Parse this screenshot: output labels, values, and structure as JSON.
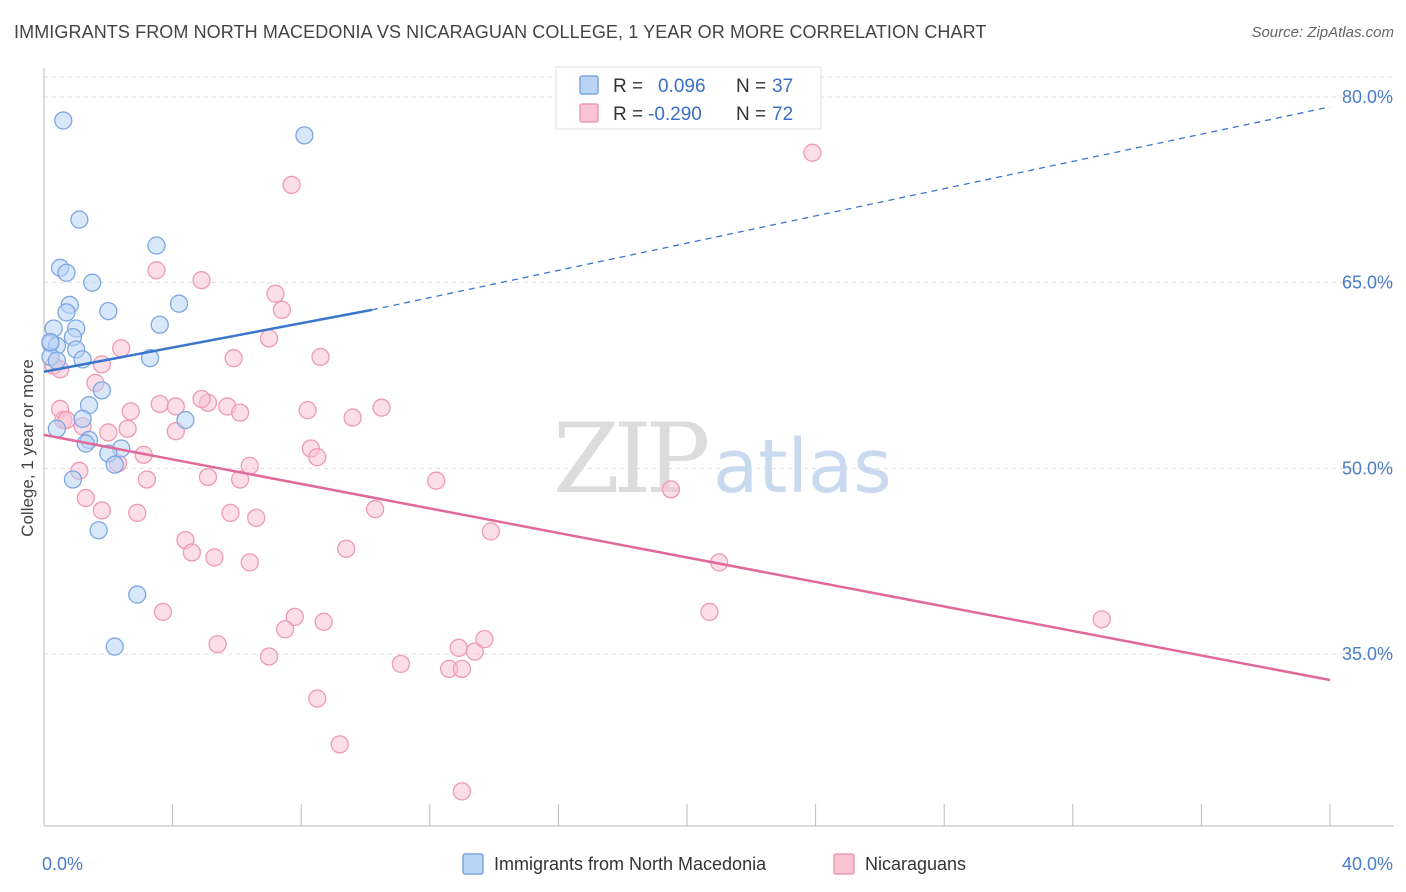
{
  "title": "IMMIGRANTS FROM NORTH MACEDONIA VS NICARAGUAN COLLEGE, 1 YEAR OR MORE CORRELATION CHART",
  "source": "Source: ZipAtlas.com",
  "watermark": {
    "zip": "ZIP",
    "atlas": "atlas"
  },
  "colors": {
    "series1_fill": "#b9d3f5",
    "series1_stroke": "#7ea7e0",
    "series1_line": "#3a76cc",
    "series2_fill": "#f8c3d3",
    "series2_stroke": "#ee9ab3",
    "series2_line": "#e0699a",
    "grid": "#dddddd",
    "tick_text": "#4a7cc7"
  },
  "legend_top": {
    "rows": [
      {
        "r_label": "R =",
        "r_value": "0.096",
        "n_label": "N =",
        "n_value": "37"
      },
      {
        "r_label": "R =",
        "r_value": "-0.290",
        "n_label": "N =",
        "n_value": "72"
      }
    ]
  },
  "chart_data": {
    "type": "scatter",
    "xlabel": "",
    "ylabel": "College, 1 year or more",
    "xlim": [
      0,
      40
    ],
    "ylim": [
      23,
      83
    ],
    "x_tick_labels": [
      {
        "value": 0,
        "label": "0.0%"
      },
      {
        "value": 40,
        "label": "40.0%"
      }
    ],
    "y_tick_labels": [
      {
        "value": 35,
        "label": "35.0%"
      },
      {
        "value": 50,
        "label": "50.0%"
      },
      {
        "value": 65,
        "label": "65.0%"
      },
      {
        "value": 80,
        "label": "80.0%"
      }
    ],
    "grid": true,
    "legend_placement": "bottom",
    "series": [
      {
        "name": "Immigrants from North Macedonia",
        "R": 0.096,
        "N": 37,
        "trend": {
          "x0": 0,
          "y0": 57.8,
          "x1": 10.2,
          "y1": 62.8,
          "dash_x1": 40,
          "dash_y1": 79.2
        },
        "points": [
          [
            0.6,
            78.1
          ],
          [
            8.1,
            76.9
          ],
          [
            1.1,
            70.1
          ],
          [
            3.5,
            68.0
          ],
          [
            0.5,
            66.2
          ],
          [
            0.7,
            65.8
          ],
          [
            1.5,
            65.0
          ],
          [
            2.0,
            62.7
          ],
          [
            4.2,
            63.3
          ],
          [
            0.8,
            63.2
          ],
          [
            0.7,
            62.6
          ],
          [
            3.6,
            61.6
          ],
          [
            0.3,
            61.3
          ],
          [
            1.0,
            61.3
          ],
          [
            0.9,
            60.6
          ],
          [
            0.2,
            60.1
          ],
          [
            0.4,
            59.9
          ],
          [
            1.0,
            59.6
          ],
          [
            0.2,
            59.0
          ],
          [
            1.2,
            58.8
          ],
          [
            3.3,
            58.9
          ],
          [
            1.8,
            56.3
          ],
          [
            1.4,
            55.1
          ],
          [
            1.2,
            54.0
          ],
          [
            4.4,
            53.9
          ],
          [
            0.4,
            53.2
          ],
          [
            1.4,
            52.3
          ],
          [
            1.3,
            52.0
          ],
          [
            2.4,
            51.6
          ],
          [
            2.0,
            51.2
          ],
          [
            2.2,
            50.3
          ],
          [
            0.9,
            49.1
          ],
          [
            1.7,
            45.0
          ],
          [
            2.9,
            39.8
          ],
          [
            2.2,
            35.6
          ],
          [
            0.2,
            60.2
          ],
          [
            0.4,
            58.7
          ]
        ]
      },
      {
        "name": "Nicaraguans",
        "R": -0.29,
        "N": 72,
        "trend": {
          "x0": 0,
          "y0": 52.7,
          "x1": 40,
          "y1": 32.9
        },
        "points": [
          [
            23.9,
            75.5
          ],
          [
            7.7,
            72.9
          ],
          [
            3.5,
            66.0
          ],
          [
            4.9,
            65.2
          ],
          [
            7.2,
            64.1
          ],
          [
            7.4,
            62.8
          ],
          [
            7.0,
            60.5
          ],
          [
            2.4,
            59.7
          ],
          [
            5.9,
            58.9
          ],
          [
            8.6,
            59.0
          ],
          [
            0.3,
            58.3
          ],
          [
            1.8,
            58.4
          ],
          [
            0.5,
            58.0
          ],
          [
            1.6,
            56.9
          ],
          [
            3.6,
            55.2
          ],
          [
            5.1,
            55.3
          ],
          [
            4.9,
            55.6
          ],
          [
            5.7,
            55.0
          ],
          [
            4.1,
            55.0
          ],
          [
            10.5,
            54.9
          ],
          [
            8.2,
            54.7
          ],
          [
            6.1,
            54.5
          ],
          [
            2.7,
            54.6
          ],
          [
            9.6,
            54.1
          ],
          [
            0.5,
            54.8
          ],
          [
            0.6,
            53.9
          ],
          [
            0.7,
            53.9
          ],
          [
            1.2,
            53.4
          ],
          [
            2.6,
            53.2
          ],
          [
            4.1,
            53.0
          ],
          [
            2.0,
            52.9
          ],
          [
            8.3,
            51.6
          ],
          [
            3.1,
            51.1
          ],
          [
            8.5,
            50.9
          ],
          [
            2.3,
            50.4
          ],
          [
            6.4,
            50.2
          ],
          [
            1.1,
            49.8
          ],
          [
            5.1,
            49.3
          ],
          [
            6.1,
            49.1
          ],
          [
            3.2,
            49.1
          ],
          [
            12.2,
            49.0
          ],
          [
            19.5,
            48.3
          ],
          [
            1.3,
            47.6
          ],
          [
            10.3,
            46.7
          ],
          [
            1.8,
            46.6
          ],
          [
            2.9,
            46.4
          ],
          [
            5.8,
            46.4
          ],
          [
            6.6,
            46.0
          ],
          [
            13.9,
            44.9
          ],
          [
            4.4,
            44.2
          ],
          [
            4.6,
            43.2
          ],
          [
            9.4,
            43.5
          ],
          [
            5.3,
            42.8
          ],
          [
            6.4,
            42.4
          ],
          [
            21.0,
            42.4
          ],
          [
            3.7,
            38.4
          ],
          [
            20.7,
            38.4
          ],
          [
            7.8,
            38.0
          ],
          [
            8.7,
            37.6
          ],
          [
            32.9,
            37.8
          ],
          [
            7.5,
            37.0
          ],
          [
            5.4,
            35.8
          ],
          [
            12.9,
            35.5
          ],
          [
            13.4,
            35.2
          ],
          [
            13.7,
            36.2
          ],
          [
            7.0,
            34.8
          ],
          [
            11.1,
            34.2
          ],
          [
            12.6,
            33.8
          ],
          [
            8.5,
            31.4
          ],
          [
            9.2,
            27.7
          ],
          [
            13.0,
            23.9
          ],
          [
            13.0,
            33.8
          ]
        ]
      }
    ]
  }
}
